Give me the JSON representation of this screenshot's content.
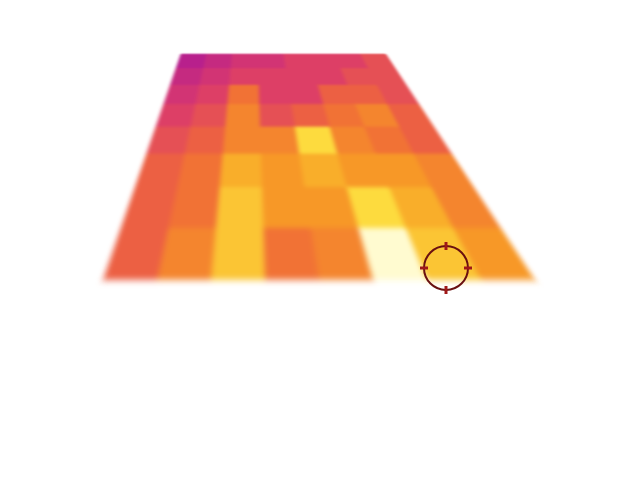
{
  "chart_data": {
    "type": "heatmap",
    "z": [
      [
        20,
        21,
        22,
        22,
        23,
        23,
        23,
        24
      ],
      [
        21,
        22,
        23,
        23,
        23,
        23,
        24,
        24
      ],
      [
        22,
        23,
        26,
        23,
        23,
        25,
        25,
        24
      ],
      [
        23,
        24,
        27,
        24,
        25,
        26,
        27,
        25
      ],
      [
        24,
        25,
        27,
        27,
        31,
        27,
        26,
        25
      ],
      [
        25,
        26,
        29,
        28,
        29,
        28,
        28,
        27
      ],
      [
        25,
        26,
        30,
        28,
        28,
        31,
        29,
        27
      ],
      [
        25,
        27,
        30,
        26,
        27,
        34,
        30,
        28
      ]
    ],
    "zlim": [
      20,
      34
    ],
    "tick_labels": false
  }
}
